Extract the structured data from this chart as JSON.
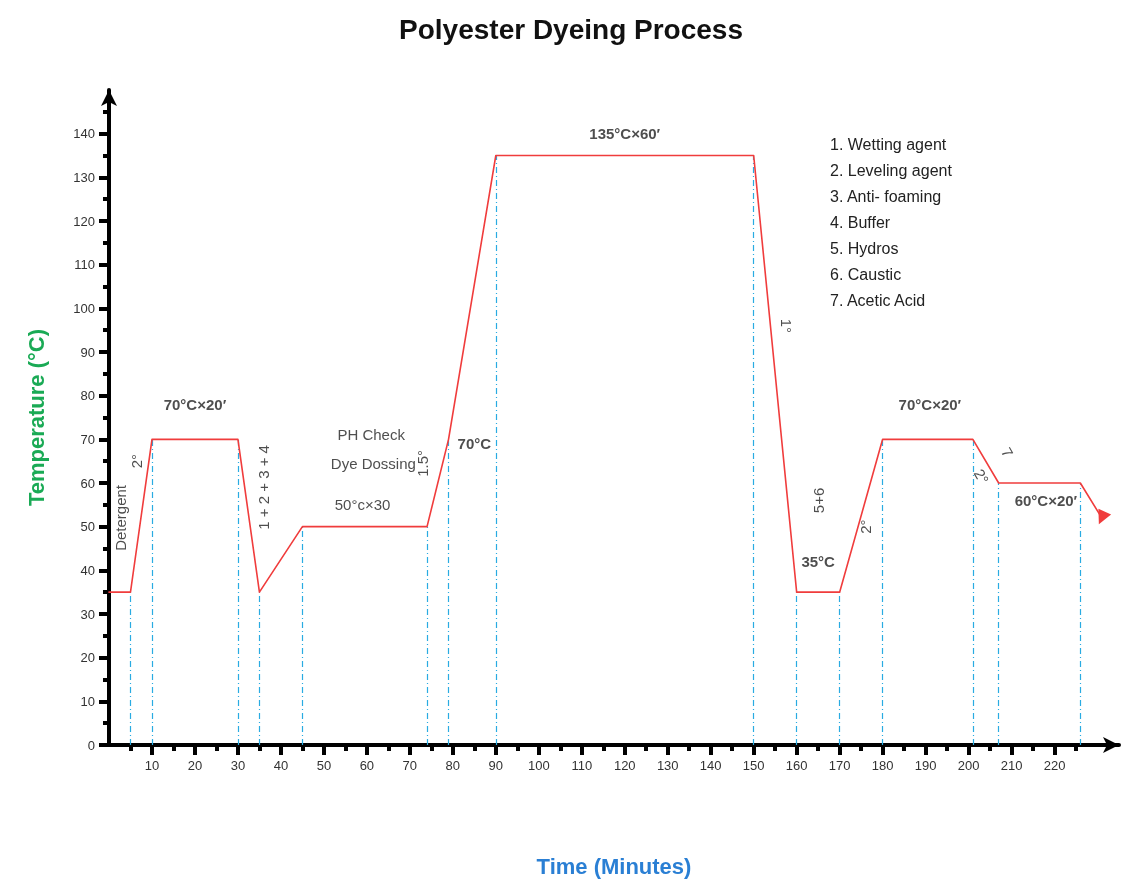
{
  "chart_data": {
    "type": "line",
    "title": "Polyester Dyeing Process",
    "xlabel": "Time (Minutes)",
    "ylabel": "Temperature (°C)",
    "x": [
      0,
      5,
      10,
      30,
      35,
      45,
      74,
      79,
      90,
      150,
      160,
      170,
      180,
      201,
      207,
      226,
      231
    ],
    "values": [
      35,
      35,
      70,
      70,
      35,
      50,
      50,
      70,
      135,
      135,
      35,
      35,
      70,
      70,
      60,
      60,
      52
    ],
    "color": "#f03c3c",
    "marker": "none",
    "line_style": "solid",
    "grid": false,
    "xlim": [
      0,
      235
    ],
    "ylim": [
      0,
      150
    ],
    "xticks": [
      10,
      20,
      30,
      40,
      50,
      60,
      70,
      80,
      90,
      100,
      110,
      120,
      130,
      140,
      150,
      160,
      170,
      180,
      190,
      200,
      210,
      220
    ],
    "yticks": [
      0,
      10,
      20,
      30,
      40,
      50,
      60,
      70,
      80,
      90,
      100,
      110,
      120,
      130,
      140
    ],
    "ref_lines": [
      {
        "axis": "x",
        "value": 5,
        "color": "#29abe2",
        "line_style": "dashed"
      },
      {
        "axis": "x",
        "value": 10,
        "color": "#29abe2",
        "line_style": "dashed"
      },
      {
        "axis": "x",
        "value": 30,
        "color": "#29abe2",
        "line_style": "dashed"
      },
      {
        "axis": "x",
        "value": 35,
        "color": "#29abe2",
        "line_style": "dashed"
      },
      {
        "axis": "x",
        "value": 45,
        "color": "#29abe2",
        "line_style": "dashed"
      },
      {
        "axis": "x",
        "value": 74,
        "color": "#29abe2",
        "line_style": "dashed"
      },
      {
        "axis": "x",
        "value": 79,
        "color": "#29abe2",
        "line_style": "dashed"
      },
      {
        "axis": "x",
        "value": 90,
        "color": "#29abe2",
        "line_style": "dashed"
      },
      {
        "axis": "x",
        "value": 150,
        "color": "#29abe2",
        "line_style": "dashed"
      },
      {
        "axis": "x",
        "value": 160,
        "color": "#29abe2",
        "line_style": "dashed"
      },
      {
        "axis": "x",
        "value": 170,
        "color": "#29abe2",
        "line_style": "dashed"
      },
      {
        "axis": "x",
        "value": 180,
        "color": "#29abe2",
        "line_style": "dashed"
      },
      {
        "axis": "x",
        "value": 201,
        "color": "#29abe2",
        "line_style": "dashed"
      },
      {
        "axis": "x",
        "value": 207,
        "color": "#29abe2",
        "line_style": "dashed"
      },
      {
        "axis": "x",
        "value": 226,
        "color": "#29abe2",
        "line_style": "dashed"
      }
    ],
    "annotations": [
      "70°C×20′",
      "50°c×30",
      "135°C×60′",
      "70°C",
      "35°C",
      "70°C×20′",
      "60°C×20′",
      "PH Check",
      "Dye Dossing",
      "Detergent",
      "2°",
      "1 + 2 + 3 + 4",
      "1.5°",
      "1°",
      "5+6",
      "2°",
      "2°",
      "7",
      "1. Wetting agent",
      "2. Leveling agent",
      "3. Anti- foaming",
      "4. Buffer",
      "5. Hydros",
      "6. Caustic",
      "7. Acetic Acid"
    ]
  }
}
